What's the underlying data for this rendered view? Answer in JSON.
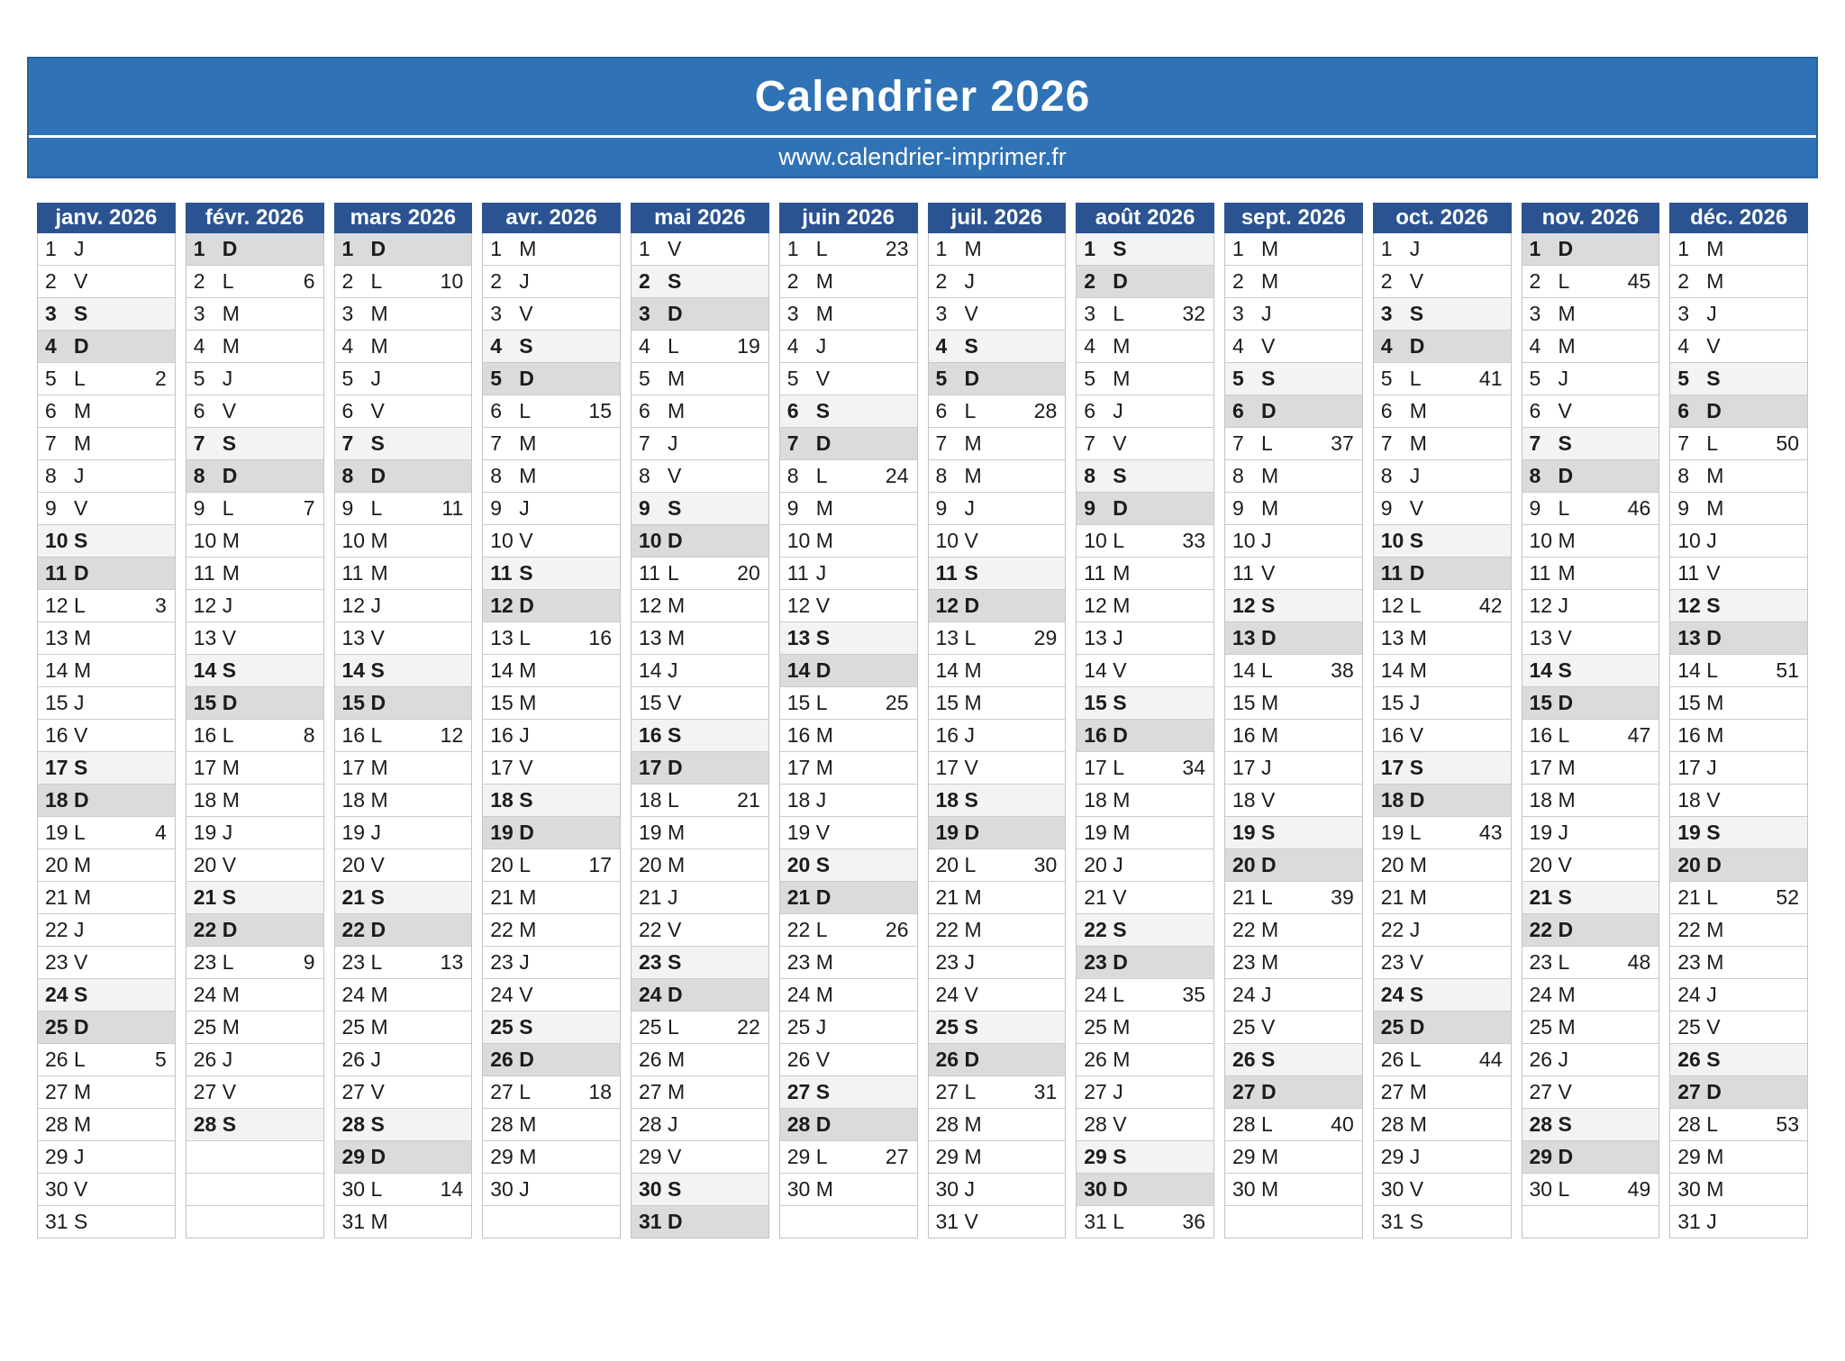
{
  "page": {
    "title": "Calendrier 2026",
    "website": "www.calendrier-imprimer.fr"
  },
  "colors": {
    "banner_blue": "#2F72B6",
    "banner_border": "#25619B",
    "month_header_blue": "#2B5391",
    "saturday_bg": "#F3F3F3",
    "sunday_bg": "#DBDBDB",
    "row_border": "#CBCBCB",
    "column_border": "#C3C3C3",
    "text": "#1C1C1C"
  },
  "layout": {
    "rows_per_month": 31
  },
  "day_letter_styles": {
    "saturday_letter": "S",
    "sunday_letter": "D"
  },
  "months": [
    {
      "id": "janvier",
      "label": "janv. 2026",
      "letters": "JVSDLMMJVSDLMMJVSDLMMJVSDLMMJVS",
      "weeks": {
        "5": 2,
        "12": 3,
        "19": 4,
        "26": 5
      },
      "plain_weekend_days": [
        31
      ]
    },
    {
      "id": "fevrier",
      "label": "févr. 2026",
      "letters": "DLMMJVSDLMMJVSDLMMJVSDLMMJVS",
      "weeks": {
        "2": 6,
        "9": 7,
        "16": 8,
        "23": 9
      },
      "plain_weekend_days": []
    },
    {
      "id": "mars",
      "label": "mars 2026",
      "letters": "DLMMJVSDLMMJVSDLMMJVSDLMMJVSDLM",
      "weeks": {
        "2": 10,
        "9": 11,
        "16": 12,
        "23": 13,
        "30": 14
      },
      "plain_weekend_days": []
    },
    {
      "id": "avril",
      "label": "avr. 2026",
      "letters": "MJVSDLMMJVSDLMMJVSDLMMJVSDLMMJ",
      "weeks": {
        "6": 15,
        "13": 16,
        "20": 17,
        "27": 18
      },
      "plain_weekend_days": []
    },
    {
      "id": "mai",
      "label": "mai 2026",
      "letters": "VSDLMMJVSDLMMJVSDLMMJVSDLMMJVSD",
      "weeks": {
        "4": 19,
        "11": 20,
        "18": 21,
        "25": 22
      },
      "plain_weekend_days": []
    },
    {
      "id": "juin",
      "label": "juin 2026",
      "letters": "LMMJVSDLMMJVSDLMMJVSDLMMJVSDLM",
      "weeks": {
        "1": 23,
        "8": 24,
        "15": 25,
        "22": 26,
        "29": 27
      },
      "plain_weekend_days": []
    },
    {
      "id": "juillet",
      "label": "juil. 2026",
      "letters": "MJVSDLMMJVSDLMMJVSDLMMJVSDLMMJV",
      "weeks": {
        "6": 28,
        "13": 29,
        "20": 30,
        "27": 31
      },
      "plain_weekend_days": []
    },
    {
      "id": "aout",
      "label": "août 2026",
      "letters": "SDLMMJVSDLMMJVSDLMMJVSDLMMJVSDL",
      "weeks": {
        "3": 32,
        "10": 33,
        "17": 34,
        "24": 35,
        "31": 36
      },
      "plain_weekend_days": []
    },
    {
      "id": "septembre",
      "label": "sept. 2026",
      "letters": "MMJVSDLMMJVSDLMMJVSDLMMJVSDLMM",
      "weeks": {
        "7": 37,
        "14": 38,
        "21": 39,
        "28": 40
      },
      "plain_weekend_days": []
    },
    {
      "id": "octobre",
      "label": "oct. 2026",
      "letters": "JVSDLMMJVSDLMMJVSDLMMJVSDLMMJVS",
      "weeks": {
        "5": 41,
        "12": 42,
        "19": 43,
        "26": 44
      },
      "plain_weekend_days": [
        31
      ]
    },
    {
      "id": "novembre",
      "label": "nov. 2026",
      "letters": "DLMMJVSDLMMJVSDLMMJVSDLMMJVSDL",
      "weeks": {
        "2": 45,
        "9": 46,
        "16": 47,
        "23": 48,
        "30": 49
      },
      "plain_weekend_days": []
    },
    {
      "id": "decembre",
      "label": "déc. 2026",
      "letters": "MMJVSDLMMJVSDLMMJVSDLMMJVSDLMMJ",
      "weeks": {
        "7": 50,
        "14": 51,
        "21": 52,
        "28": 53
      },
      "plain_weekend_days": []
    }
  ]
}
